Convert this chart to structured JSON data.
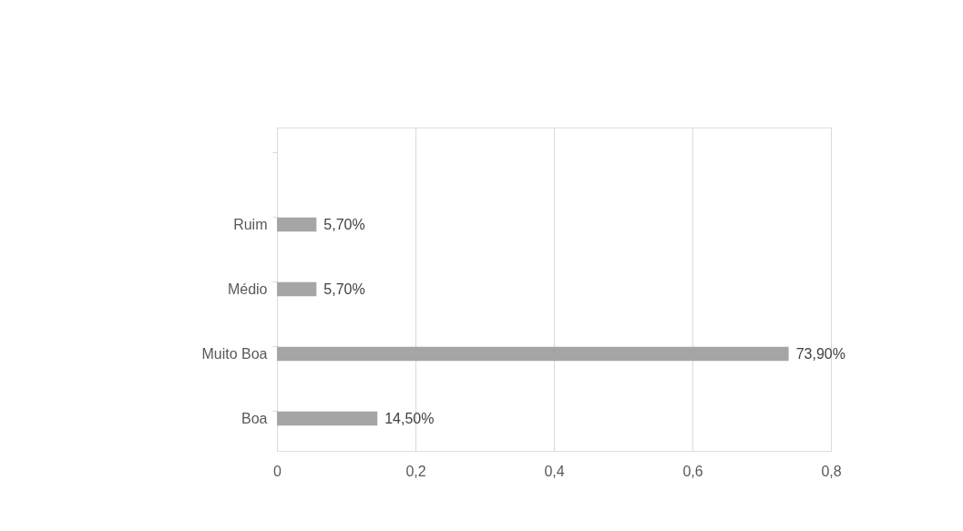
{
  "chart_data": {
    "type": "bar",
    "orientation": "horizontal",
    "categories": [
      null,
      "Ruim",
      "Médio",
      "Muito Boa",
      "Boa"
    ],
    "values": [
      null,
      0.057,
      0.057,
      0.739,
      0.145
    ],
    "value_labels": [
      null,
      "5,70%",
      "5,70%",
      "73,90%",
      "14,50%"
    ],
    "color": "#a5a5a5",
    "xlim": [
      0,
      0.8
    ],
    "xticks": [
      0,
      {
        "value": 0.2,
        "label": "0,2"
      },
      {
        "value": 0.4,
        "label": "0,4"
      },
      {
        "value": 0.6,
        "label": "0,6"
      },
      {
        "value": 0.8,
        "label": "0,8"
      }
    ],
    "grid": "x"
  }
}
